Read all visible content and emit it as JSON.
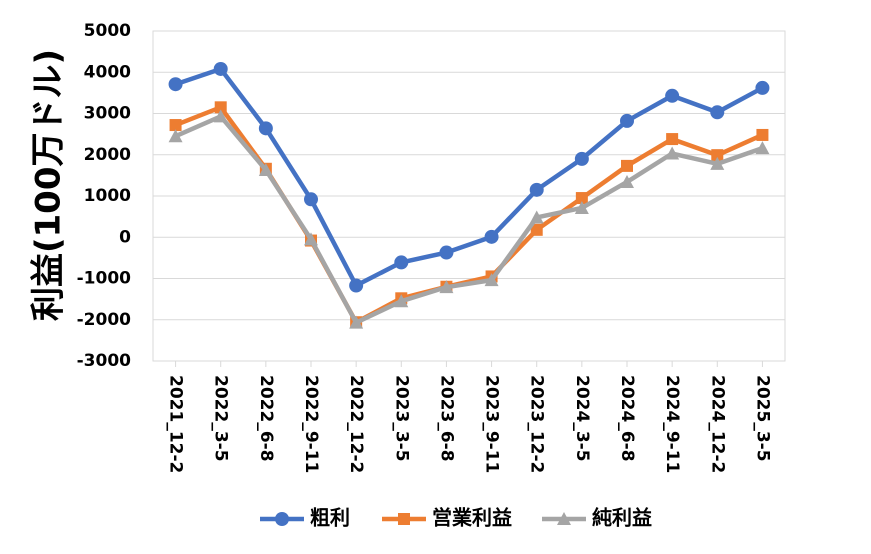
{
  "chart_data": {
    "type": "line",
    "ylabel": "利益(100万ドル)",
    "xlabel": "",
    "title": "",
    "ylim": [
      -3000,
      5000
    ],
    "yticks": [
      5000,
      4000,
      3000,
      2000,
      1000,
      0,
      -1000,
      -2000,
      -3000
    ],
    "grid": true,
    "legend": "bottom",
    "categories": [
      "2021_12-2",
      "2022_3-5",
      "2022_6-8",
      "2022_9-11",
      "2022_12-2",
      "2023_3-5",
      "2023_6-8",
      "2023_9-11",
      "2023_12-2",
      "2024_3-5",
      "2024_6-8",
      "2024_9-11",
      "2024_12-2",
      "2025_3-5"
    ],
    "series": [
      {
        "name": "粗利",
        "color": "#4472C4",
        "marker": "circle",
        "values": [
          3710,
          4080,
          2640,
          920,
          -1170,
          -610,
          -370,
          10,
          1150,
          1900,
          2820,
          3430,
          3030,
          3620
        ]
      },
      {
        "name": "営業利益",
        "color": "#ED7D31",
        "marker": "square",
        "values": [
          2720,
          3150,
          1660,
          -80,
          -2060,
          -1480,
          -1200,
          -950,
          180,
          950,
          1730,
          2380,
          1990,
          2480
        ]
      },
      {
        "name": "純利益",
        "color": "#A5A5A5",
        "marker": "triangle",
        "values": [
          2450,
          2930,
          1630,
          -50,
          -2070,
          -1550,
          -1210,
          -1040,
          480,
          710,
          1340,
          2030,
          1780,
          2160
        ]
      }
    ]
  }
}
